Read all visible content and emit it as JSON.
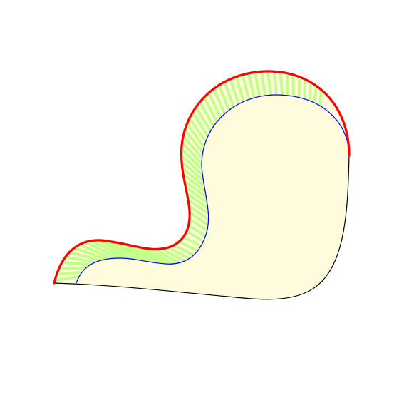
{
  "figure": {
    "colors": {
      "background": "#ffffff",
      "shape_fill": "#fefcdc",
      "hatch_stroke": "#c4ff8a",
      "outer_curve_stroke": "#ff0000",
      "inner_curve_stroke": "#0000ff",
      "base_curve_stroke": "#000000"
    }
  }
}
